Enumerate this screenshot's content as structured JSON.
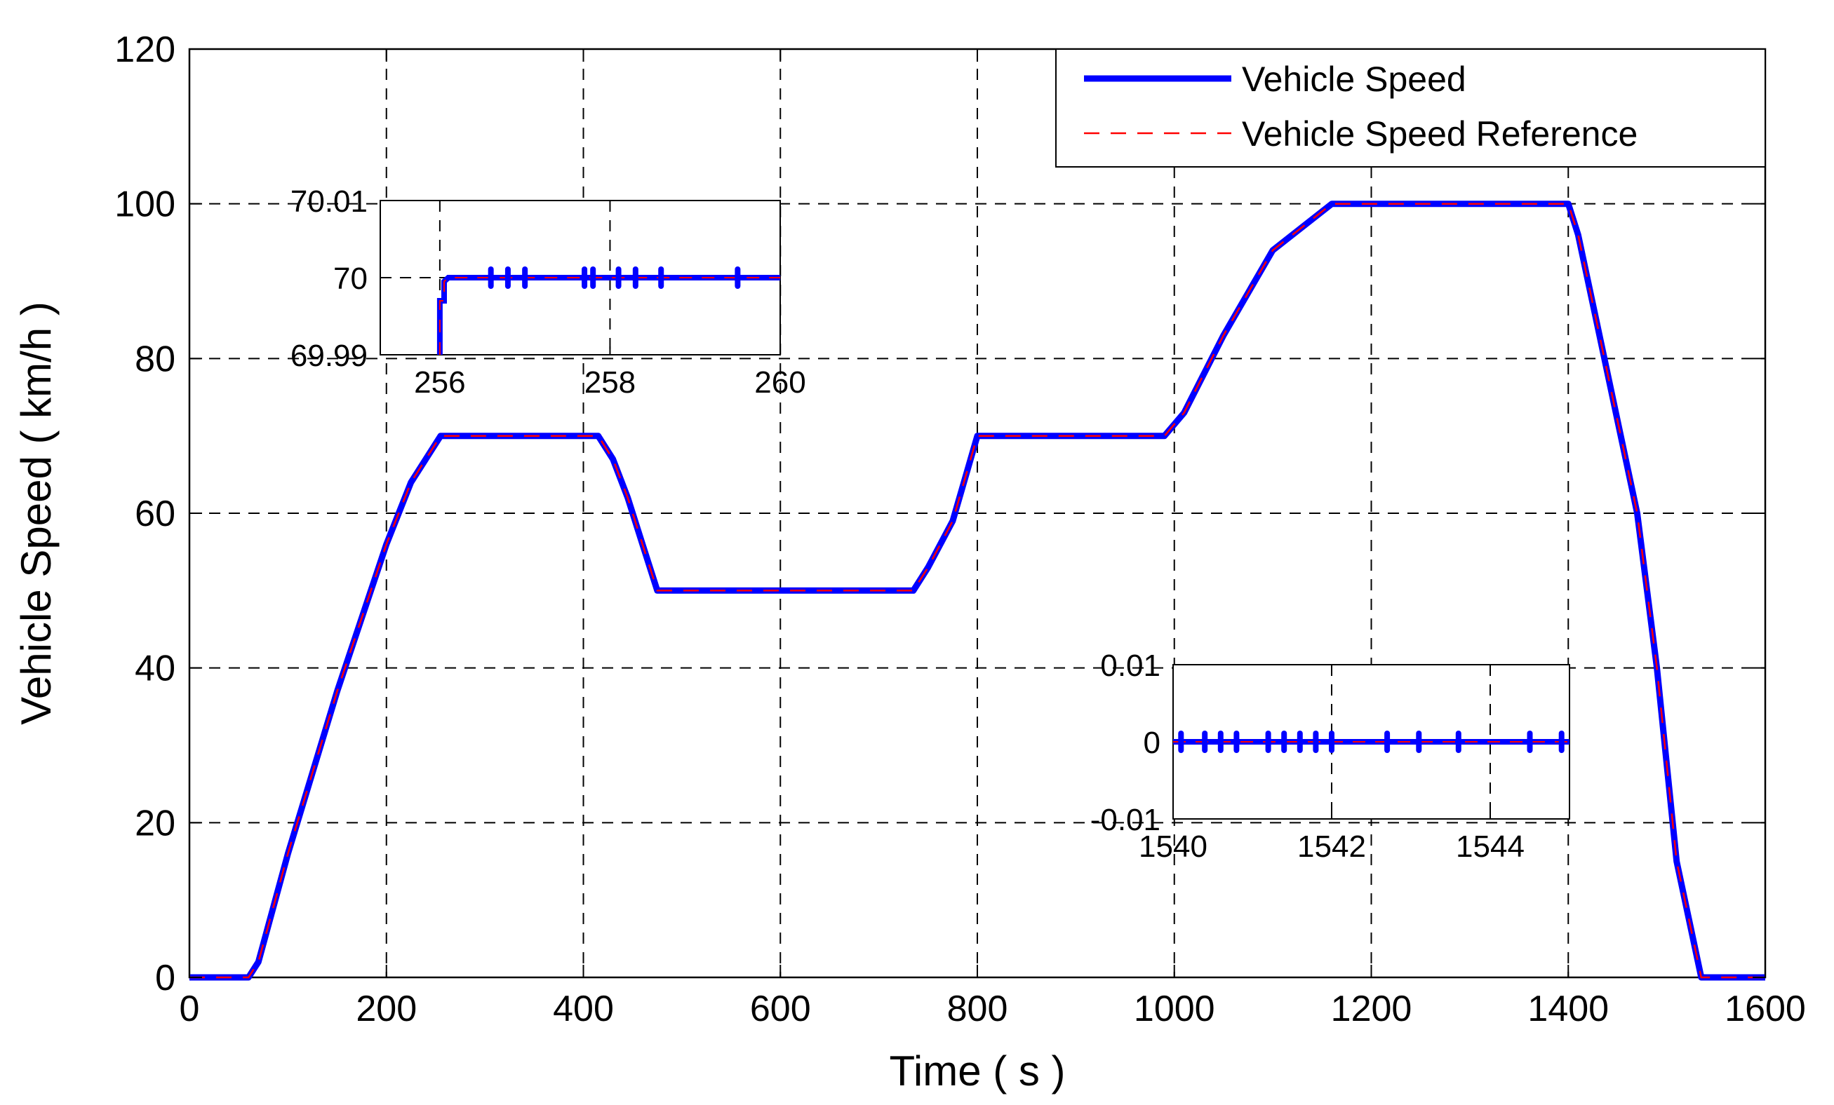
{
  "chart_data": {
    "type": "line",
    "xlabel": "Time ( s )",
    "ylabel": "Vehicle Speed ( km/h )",
    "xlim": [
      0,
      1600
    ],
    "ylim": [
      0,
      120
    ],
    "x_ticks": [
      0,
      200,
      400,
      600,
      800,
      1000,
      1200,
      1400,
      1600
    ],
    "y_ticks": [
      0,
      20,
      40,
      60,
      80,
      100,
      120
    ],
    "grid": true,
    "legend_position": "top-right",
    "series": [
      {
        "name": "Vehicle Speed",
        "color": "#0000ff",
        "style": "solid",
        "x": [
          0,
          60,
          70,
          100,
          150,
          200,
          225,
          255,
          415,
          430,
          445,
          460,
          475,
          735,
          750,
          775,
          800,
          990,
          1010,
          1050,
          1100,
          1130,
          1160,
          1400,
          1410,
          1430,
          1450,
          1470,
          1490,
          1510,
          1535,
          1600
        ],
        "y": [
          0,
          0,
          2,
          16,
          37,
          56,
          64,
          70,
          70,
          67,
          62,
          56,
          50,
          50,
          53,
          59,
          70,
          70,
          73,
          83,
          94,
          97,
          100,
          100,
          96,
          84,
          72,
          60,
          40,
          15,
          0,
          0
        ]
      },
      {
        "name": "Vehicle Speed Reference",
        "color": "#ff0000",
        "style": "dashed",
        "x": [
          0,
          60,
          70,
          100,
          150,
          200,
          225,
          255,
          415,
          430,
          445,
          460,
          475,
          735,
          750,
          775,
          800,
          990,
          1010,
          1050,
          1100,
          1130,
          1160,
          1400,
          1410,
          1430,
          1450,
          1470,
          1490,
          1510,
          1535,
          1600
        ],
        "y": [
          0,
          0,
          2,
          16,
          37,
          56,
          64,
          70,
          70,
          67,
          62,
          56,
          50,
          50,
          53,
          59,
          70,
          70,
          73,
          83,
          94,
          97,
          100,
          100,
          96,
          84,
          72,
          60,
          40,
          15,
          0,
          0
        ]
      }
    ],
    "insets": [
      {
        "xlim": [
          255.3,
          260
        ],
        "ylim": [
          69.99,
          70.01
        ],
        "x_ticks": [
          256,
          258,
          260
        ],
        "y_ticks": [
          69.99,
          70,
          70.01
        ],
        "y_tick_labels": [
          "69.99",
          "70",
          "70.01"
        ],
        "series": {
          "name": "Vehicle Speed",
          "x": [
            256,
            256,
            256.05,
            256.05,
            256.1,
            260
          ],
          "y": [
            69.99,
            69.997,
            69.997,
            69.9995,
            70,
            70
          ]
        },
        "spikes_x": [
          256.6,
          256.8,
          257.0,
          257.7,
          257.8,
          258.1,
          258.3,
          258.6,
          259.5
        ]
      },
      {
        "xlim": [
          1540,
          1545
        ],
        "ylim": [
          -0.01,
          0.01
        ],
        "x_ticks": [
          1540,
          1542,
          1544
        ],
        "y_ticks": [
          -0.01,
          0,
          0.01
        ],
        "y_tick_labels": [
          "-0.01",
          "0",
          "0.01"
        ],
        "series": {
          "name": "Vehicle Speed",
          "x": [
            1540,
            1545
          ],
          "y": [
            0,
            0
          ]
        },
        "spikes_x": [
          1540.1,
          1540.4,
          1540.6,
          1540.8,
          1541.2,
          1541.4,
          1541.6,
          1541.8,
          1542.0,
          1542.7,
          1543.1,
          1543.6,
          1544.5,
          1544.9
        ]
      }
    ]
  }
}
